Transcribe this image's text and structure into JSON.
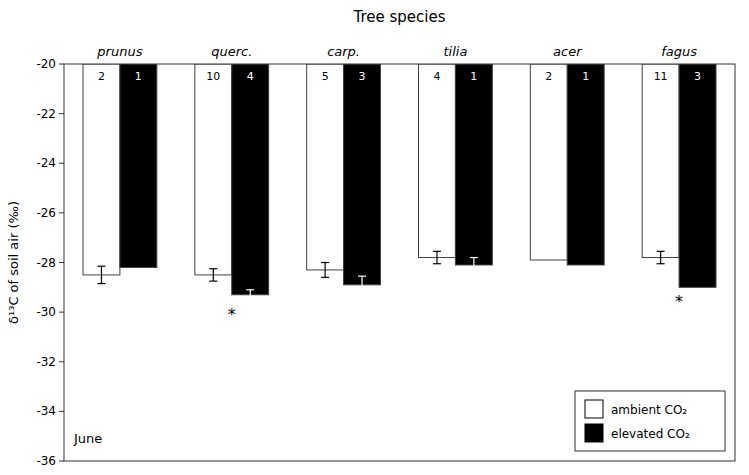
{
  "chart_data": {
    "type": "bar",
    "title": "Tree species",
    "y_label": "δ¹³C of soil air (‰)",
    "categories": [
      "prunus",
      "querc.",
      "carp.",
      "tilia",
      "acer",
      "fagus"
    ],
    "series": [
      {
        "name": "ambient CO₂",
        "color": "#ffffff",
        "values": [
          -28.5,
          -28.5,
          -28.3,
          -27.8,
          -27.9,
          -27.8
        ],
        "errors": [
          0.35,
          0.25,
          0.3,
          0.25,
          0.0,
          0.25
        ],
        "n_labels": [
          "2",
          "10",
          "5",
          "4",
          "2",
          "11"
        ]
      },
      {
        "name": "elevated CO₂",
        "color": "#000000",
        "values": [
          -28.2,
          -29.3,
          -28.9,
          -28.1,
          -28.1,
          -29.0
        ],
        "errors": [
          0.0,
          0.2,
          0.35,
          0.3,
          0.0,
          0.0
        ],
        "n_labels": [
          "1",
          "4",
          "3",
          "1",
          "1",
          "3"
        ]
      }
    ],
    "annotations": [
      {
        "text": "June"
      },
      {
        "text": "*",
        "category": "querc."
      },
      {
        "text": "*",
        "category": "fagus"
      }
    ],
    "ylim": [
      -36,
      -20
    ],
    "yticks": [
      -36,
      -34,
      -32,
      -30,
      -28,
      -26,
      -24,
      -22,
      -20
    ],
    "grid": false,
    "legend": "lower right"
  }
}
